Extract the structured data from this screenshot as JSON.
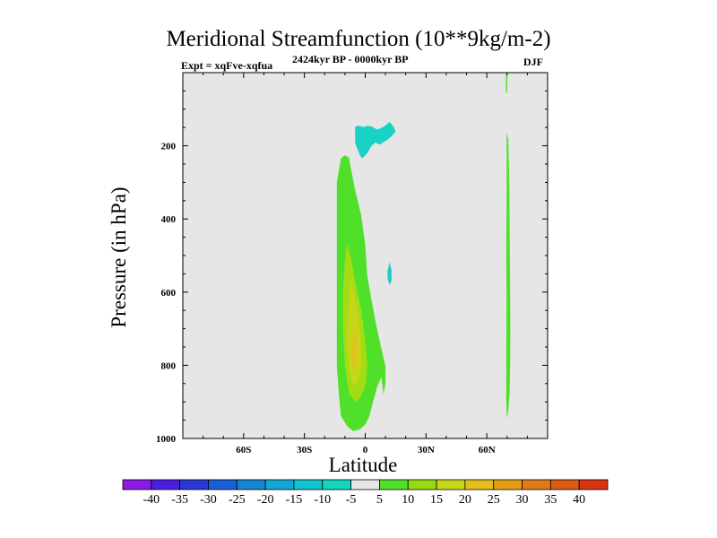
{
  "chart_data": {
    "type": "contour",
    "title": "Meridional Streamfunction (10**9kg/m-2)",
    "left_label": "Expt = xqFve-xqfua",
    "center_label": "2424kyr BP - 0000kyr BP",
    "right_label": "DJF",
    "xlabel": "Latitude",
    "ylabel": "Pressure (in hPa)",
    "xlim": [
      -90,
      90
    ],
    "ylim": [
      0,
      1000
    ],
    "y_inverted": true,
    "x_ticks": [
      {
        "v": -60,
        "label": "60S"
      },
      {
        "v": -30,
        "label": "30S"
      },
      {
        "v": 0,
        "label": "0"
      },
      {
        "v": 30,
        "label": "30N"
      },
      {
        "v": 60,
        "label": "60N"
      }
    ],
    "y_ticks": [
      {
        "v": 200,
        "label": "200"
      },
      {
        "v": 400,
        "label": "400"
      },
      {
        "v": 600,
        "label": "600"
      },
      {
        "v": 800,
        "label": "800"
      },
      {
        "v": 1000,
        "label": "1000"
      }
    ],
    "background_color": "#e6e6e6",
    "contour_levels": [
      -40,
      -35,
      -30,
      -25,
      -20,
      -15,
      -10,
      -5,
      5,
      10,
      15,
      20,
      25,
      30,
      35,
      40
    ],
    "colorbar_colors": [
      "#8a1ae6",
      "#4d1ee0",
      "#2837d6",
      "#1b5fd8",
      "#1486d0",
      "#12a8d6",
      "#10c4cf",
      "#12d6bf",
      "#e6e6e6",
      "#50e02a",
      "#96db0f",
      "#c8d61a",
      "#e4be1a",
      "#e49e14",
      "#e07a18",
      "#dc5a16",
      "#d83410"
    ],
    "regions": [
      {
        "name": "nh-upper-cyan-cell",
        "level_range": "-10 to -5",
        "color": "#18d2c4",
        "points": [
          [
            -5,
            148
          ],
          [
            -3,
            145
          ],
          [
            -1,
            149
          ],
          [
            1,
            145
          ],
          [
            3,
            147
          ],
          [
            6,
            156
          ],
          [
            9,
            148
          ],
          [
            11,
            140
          ],
          [
            12,
            134
          ],
          [
            14,
            148
          ],
          [
            15,
            161
          ],
          [
            13,
            174
          ],
          [
            11,
            183
          ],
          [
            9,
            190
          ],
          [
            7,
            197
          ],
          [
            5,
            191
          ],
          [
            3,
            201
          ],
          [
            1,
            220
          ],
          [
            -1,
            232
          ],
          [
            -2,
            232
          ],
          [
            -3,
            220
          ],
          [
            -4,
            208
          ],
          [
            -5,
            191
          ],
          [
            -5,
            172
          ]
        ]
      },
      {
        "name": "nh-cyan-sliver",
        "level_range": "-10 to -5",
        "color": "#18d2c4",
        "points": [
          [
            11,
            543
          ],
          [
            12,
            518
          ],
          [
            13,
            540
          ],
          [
            13,
            569
          ],
          [
            12,
            581
          ],
          [
            11,
            562
          ]
        ]
      },
      {
        "name": "tropical-outer-green",
        "level_range": "5 to 10",
        "color": "#50e02a",
        "points": [
          [
            -12,
            234
          ],
          [
            -10,
            226
          ],
          [
            -8,
            232
          ],
          [
            -7,
            264
          ],
          [
            -5,
            320
          ],
          [
            -2,
            390
          ],
          [
            0,
            470
          ],
          [
            1,
            556
          ],
          [
            3,
            618
          ],
          [
            5,
            678
          ],
          [
            8,
            756
          ],
          [
            10,
            802
          ],
          [
            10,
            850
          ],
          [
            9,
            880
          ],
          [
            8,
            833
          ],
          [
            6,
            856
          ],
          [
            4,
            898
          ],
          [
            2,
            940
          ],
          [
            0,
            962
          ],
          [
            -3,
            976
          ],
          [
            -6,
            980
          ],
          [
            -9,
            966
          ],
          [
            -12,
            938
          ],
          [
            -13,
            880
          ],
          [
            -14,
            800
          ],
          [
            -14,
            700
          ],
          [
            -14,
            600
          ],
          [
            -14,
            500
          ],
          [
            -14,
            400
          ],
          [
            -14,
            300
          ]
        ]
      },
      {
        "name": "tropical-yellow-green",
        "level_range": "10 to 15",
        "color": "#a4dc14",
        "points": [
          [
            -9,
            468
          ],
          [
            -7,
            508
          ],
          [
            -5,
            570
          ],
          [
            -2,
            650
          ],
          [
            0,
            730
          ],
          [
            1,
            800
          ],
          [
            0,
            856
          ],
          [
            -2,
            884
          ],
          [
            -5,
            900
          ],
          [
            -8,
            876
          ],
          [
            -10,
            800
          ],
          [
            -11,
            700
          ],
          [
            -11,
            600
          ],
          [
            -10,
            520
          ]
        ]
      },
      {
        "name": "tropical-olive",
        "level_range": "15 to 20",
        "color": "#c8d61a",
        "points": [
          [
            -7,
            560
          ],
          [
            -5,
            620
          ],
          [
            -3,
            680
          ],
          [
            -2,
            740
          ],
          [
            -2,
            800
          ],
          [
            -4,
            846
          ],
          [
            -6,
            856
          ],
          [
            -8,
            800
          ],
          [
            -9,
            720
          ],
          [
            -8,
            640
          ]
        ]
      },
      {
        "name": "tropical-core",
        "level_range": "20 to 25",
        "color": "#dec41e",
        "points": [
          [
            -5,
            690
          ],
          [
            -4,
            730
          ],
          [
            -4,
            780
          ],
          [
            -5,
            812
          ],
          [
            -6,
            800
          ],
          [
            -7,
            760
          ],
          [
            -6,
            720
          ]
        ]
      },
      {
        "name": "nh-green-strip-upper",
        "level_range": "5 to 10",
        "color": "#50e02a",
        "points": [
          [
            69.5,
            0
          ],
          [
            70.2,
            0
          ],
          [
            70.0,
            55
          ],
          [
            69.4,
            55
          ]
        ]
      },
      {
        "name": "nh-green-strip",
        "level_range": "5 to 10",
        "color": "#50e02a",
        "points": [
          [
            69.8,
            165
          ],
          [
            70.6,
            182
          ],
          [
            71.1,
            300
          ],
          [
            71.3,
            450
          ],
          [
            71.5,
            600
          ],
          [
            71.6,
            700
          ],
          [
            71.5,
            800
          ],
          [
            71.2,
            880
          ],
          [
            70.5,
            930
          ],
          [
            69.9,
            945
          ],
          [
            69.6,
            900
          ],
          [
            69.6,
            800
          ],
          [
            69.7,
            700
          ],
          [
            69.7,
            600
          ],
          [
            69.6,
            500
          ],
          [
            69.7,
            400
          ],
          [
            69.8,
            300
          ],
          [
            69.8,
            200
          ]
        ]
      }
    ]
  }
}
